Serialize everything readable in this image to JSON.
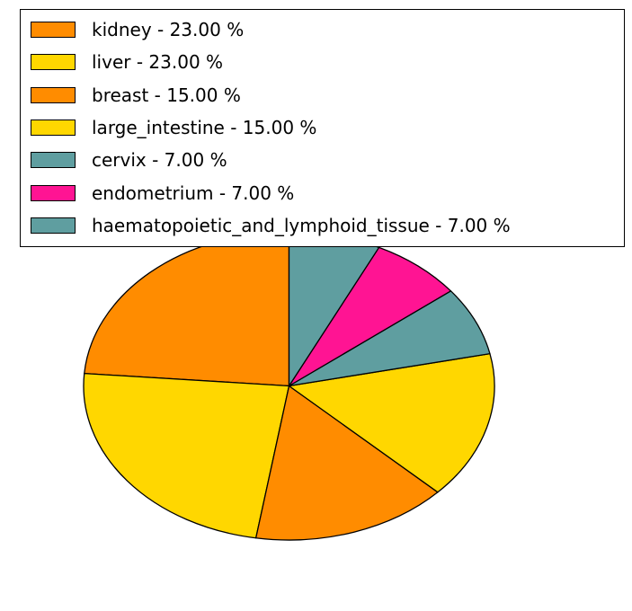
{
  "legend": {
    "items": [
      {
        "label": "kidney - 23.00 %",
        "color": "#FF8C00"
      },
      {
        "label": "liver - 23.00 %",
        "color": "#FFD700"
      },
      {
        "label": "breast - 15.00 %",
        "color": "#FF8C00"
      },
      {
        "label": "large_intestine - 15.00 %",
        "color": "#FFD700"
      },
      {
        "label": "cervix - 7.00 %",
        "color": "#5F9EA0"
      },
      {
        "label": "endometrium - 7.00 %",
        "color": "#FF1493"
      },
      {
        "label": "haematopoietic_and_lymphoid_tissue - 7.00 %",
        "color": "#5F9EA0"
      }
    ]
  },
  "chart_data": {
    "type": "pie",
    "labels": [
      "kidney",
      "liver",
      "breast",
      "large_intestine",
      "cervix",
      "endometrium",
      "haematopoietic_and_lymphoid_tissue"
    ],
    "values": [
      23,
      23,
      15,
      15,
      7,
      7,
      7
    ],
    "percent_labels": [
      "23.00 %",
      "23.00 %",
      "15.00 %",
      "15.00 %",
      "7.00 %",
      "7.00 %",
      "7.00 %"
    ],
    "colors": [
      "#FF8C00",
      "#FFD700",
      "#FF8C00",
      "#FFD700",
      "#5F9EA0",
      "#FF1493",
      "#5F9EA0"
    ],
    "start_angle": 90,
    "counterclock": true,
    "edge_color": "#000000",
    "legend_position": "upper-left",
    "background_color": "#ffffff"
  }
}
